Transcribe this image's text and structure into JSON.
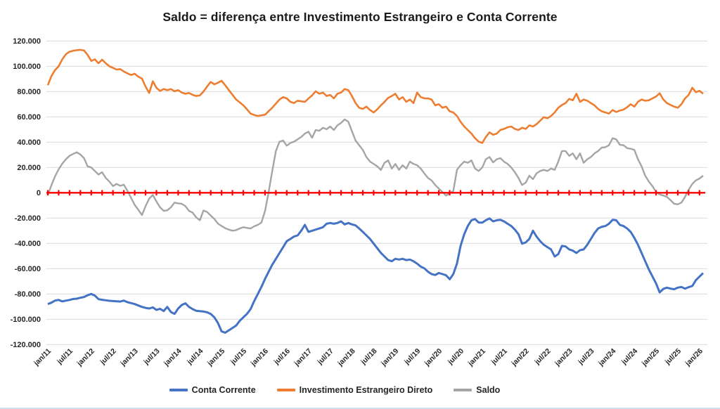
{
  "title": "Saldo = diferença entre Investimento Estrangeiro e Conta Corrente",
  "chart_data": {
    "type": "line",
    "title": "Saldo = diferença entre Investimento Estrangeiro e Conta Corrente",
    "x_interval": "monthly",
    "x_start": "jan/11",
    "n_points": 182,
    "x_tick_every_months": 6,
    "x_tick_labels": [
      "jan/11",
      "jul/11",
      "jan/12",
      "jul/12",
      "jan/13",
      "jul/13",
      "jan/14",
      "jul/14",
      "jan/15",
      "jul/15",
      "jan/16",
      "jul/16",
      "jan/17",
      "jul/17",
      "jan/18",
      "jul/18",
      "jan/19",
      "jul/19",
      "jan/20",
      "jul/20",
      "jan/21",
      "jul/21",
      "jan/22",
      "jul/22",
      "jan/23",
      "jul/23",
      "jan/24",
      "jul/24",
      "jan/25",
      "jul/25",
      "jan/26"
    ],
    "y_axis": {
      "min": -120000,
      "max": 120000,
      "step": 20000,
      "tick_labels": [
        "120.000",
        "100.000",
        "80.000",
        "60.000",
        "40.000",
        "20.000",
        "0",
        "-20.000",
        "-40.000",
        "-60.000",
        "-80.000",
        "-100.000",
        "-120.000"
      ]
    },
    "grid": true,
    "legend_position": "bottom",
    "series": [
      {
        "name": "Conta Corrente",
        "color": "#4472C4",
        "values": [
          -88000,
          -86900,
          -85200,
          -84700,
          -85900,
          -85300,
          -84700,
          -84000,
          -83700,
          -83000,
          -82400,
          -81000,
          -80000,
          -81300,
          -84100,
          -84600,
          -85000,
          -85400,
          -85600,
          -85800,
          -86000,
          -85200,
          -86500,
          -87200,
          -88000,
          -89100,
          -90200,
          -91000,
          -91500,
          -90600,
          -92600,
          -91700,
          -93500,
          -90200,
          -94300,
          -95800,
          -91500,
          -88700,
          -87400,
          -90200,
          -92000,
          -93300,
          -93600,
          -93900,
          -94500,
          -95800,
          -98500,
          -103000,
          -109600,
          -110600,
          -108700,
          -106900,
          -105000,
          -101300,
          -98500,
          -95800,
          -92000,
          -85600,
          -80000,
          -74400,
          -68000,
          -62400,
          -56900,
          -52200,
          -47600,
          -43000,
          -38300,
          -36500,
          -34600,
          -33700,
          -30000,
          -25400,
          -30900,
          -30000,
          -29100,
          -28200,
          -27200,
          -24500,
          -23900,
          -24500,
          -23900,
          -22600,
          -25000,
          -23900,
          -25000,
          -25800,
          -28200,
          -30900,
          -33700,
          -36500,
          -40200,
          -43900,
          -47500,
          -50400,
          -53200,
          -54100,
          -52200,
          -52800,
          -52200,
          -53200,
          -52800,
          -54100,
          -56000,
          -58400,
          -59700,
          -62400,
          -64300,
          -65000,
          -63400,
          -64300,
          -65200,
          -68400,
          -64300,
          -56000,
          -42100,
          -32800,
          -26300,
          -21700,
          -20800,
          -23500,
          -23600,
          -21700,
          -20300,
          -22600,
          -21700,
          -21400,
          -22600,
          -24500,
          -26300,
          -29100,
          -32800,
          -40200,
          -39200,
          -36500,
          -30000,
          -34600,
          -38300,
          -41100,
          -43000,
          -44800,
          -50400,
          -48500,
          -42000,
          -42400,
          -44800,
          -45700,
          -47600,
          -45400,
          -44800,
          -41100,
          -36500,
          -31900,
          -28200,
          -26900,
          -26300,
          -24500,
          -21400,
          -21700,
          -25400,
          -26300,
          -28200,
          -31000,
          -35600,
          -41100,
          -47600,
          -54100,
          -60600,
          -66100,
          -71700,
          -78700,
          -76000,
          -75000,
          -75800,
          -76300,
          -75000,
          -74500,
          -75800,
          -74600,
          -73700,
          -69100,
          -66300,
          -63500
        ]
      },
      {
        "name": "Investimento Estrangeiro Direto",
        "color": "#ED7D31",
        "values": [
          85000,
          92200,
          97000,
          100000,
          105500,
          109500,
          111500,
          112300,
          112700,
          113000,
          112500,
          109000,
          104200,
          105500,
          102400,
          105200,
          102400,
          100000,
          98700,
          97400,
          97800,
          95900,
          94400,
          93100,
          94100,
          91800,
          90300,
          84000,
          78900,
          88100,
          83000,
          80500,
          82000,
          81100,
          82000,
          80200,
          81100,
          79200,
          78300,
          78900,
          77400,
          76500,
          77000,
          80000,
          84000,
          87600,
          85700,
          87000,
          88500,
          85000,
          81100,
          77500,
          73700,
          71500,
          69100,
          66000,
          62600,
          61500,
          60700,
          61200,
          61700,
          64500,
          67200,
          70500,
          73700,
          75600,
          74600,
          71900,
          70900,
          72800,
          72300,
          71900,
          74500,
          77000,
          80200,
          78300,
          79200,
          76500,
          77400,
          74600,
          78300,
          79200,
          82000,
          81100,
          76500,
          70900,
          67200,
          66300,
          68100,
          65400,
          63500,
          66000,
          69100,
          71900,
          75000,
          76500,
          78300,
          73700,
          75600,
          71900,
          73700,
          70900,
          79200,
          75600,
          74600,
          74600,
          73700,
          69100,
          70000,
          67200,
          68100,
          64400,
          63500,
          60700,
          56100,
          52400,
          49600,
          46800,
          43100,
          40400,
          39400,
          44100,
          47800,
          45900,
          46800,
          49600,
          50500,
          51800,
          52400,
          50500,
          49600,
          51400,
          50500,
          53300,
          52400,
          54200,
          57000,
          59800,
          58900,
          60700,
          63500,
          67200,
          69400,
          70900,
          74200,
          73100,
          78300,
          71900,
          73700,
          72800,
          70900,
          69100,
          66300,
          64400,
          63500,
          62600,
          65400,
          63900,
          65000,
          65700,
          67600,
          70000,
          68100,
          71900,
          73700,
          72800,
          73100,
          74600,
          76100,
          78700,
          73700,
          70900,
          69400,
          68100,
          67200,
          70000,
          74600,
          77400,
          83000,
          79500,
          80600,
          78300
        ]
      },
      {
        "name": "Saldo",
        "color": "#A5A5A5",
        "values": [
          -2000,
          6000,
          13000,
          18500,
          23000,
          26500,
          29200,
          30700,
          32000,
          30200,
          27400,
          20900,
          20000,
          17200,
          14400,
          16300,
          11700,
          8900,
          5200,
          7000,
          5500,
          6400,
          1500,
          -4000,
          -9600,
          -13400,
          -17600,
          -10600,
          -4600,
          -1700,
          -6900,
          -11500,
          -14300,
          -13900,
          -11500,
          -7800,
          -8400,
          -8700,
          -10600,
          -14300,
          -15800,
          -19500,
          -21700,
          -14000,
          -15200,
          -18000,
          -20700,
          -24400,
          -26300,
          -28000,
          -29100,
          -30000,
          -29500,
          -28200,
          -27200,
          -27800,
          -28200,
          -26500,
          -25400,
          -23500,
          -14300,
          600,
          17200,
          33000,
          40400,
          41300,
          37200,
          39400,
          40400,
          42200,
          44100,
          46800,
          48300,
          43500,
          49600,
          49000,
          51400,
          50200,
          52400,
          49600,
          53300,
          55200,
          58000,
          56100,
          48700,
          41300,
          37600,
          33900,
          28300,
          24600,
          22800,
          20900,
          18000,
          23700,
          25600,
          19100,
          22800,
          18100,
          21800,
          19100,
          24600,
          22800,
          21800,
          19100,
          15300,
          11700,
          9800,
          6100,
          3300,
          600,
          -2200,
          -400,
          1400,
          18100,
          21800,
          24600,
          23700,
          25600,
          19100,
          17200,
          20000,
          26500,
          28300,
          24000,
          26500,
          27400,
          24600,
          22800,
          20000,
          16300,
          11700,
          6100,
          8000,
          13500,
          10700,
          15400,
          17200,
          18100,
          17200,
          19100,
          18100,
          24600,
          33000,
          33000,
          29200,
          31100,
          26500,
          31100,
          23700,
          26500,
          28300,
          31100,
          33000,
          35700,
          36000,
          37600,
          43100,
          42200,
          37900,
          37600,
          35300,
          34800,
          33900,
          26500,
          20900,
          13500,
          8900,
          5200,
          600,
          -1300,
          -2200,
          -3200,
          -5900,
          -8700,
          -9100,
          -7800,
          -3200,
          2400,
          7000,
          9800,
          11300,
          13500
        ]
      }
    ],
    "zero_line": {
      "value": 0,
      "color": "#FF0000",
      "marker": "plus",
      "marker_every_months": 3
    }
  }
}
